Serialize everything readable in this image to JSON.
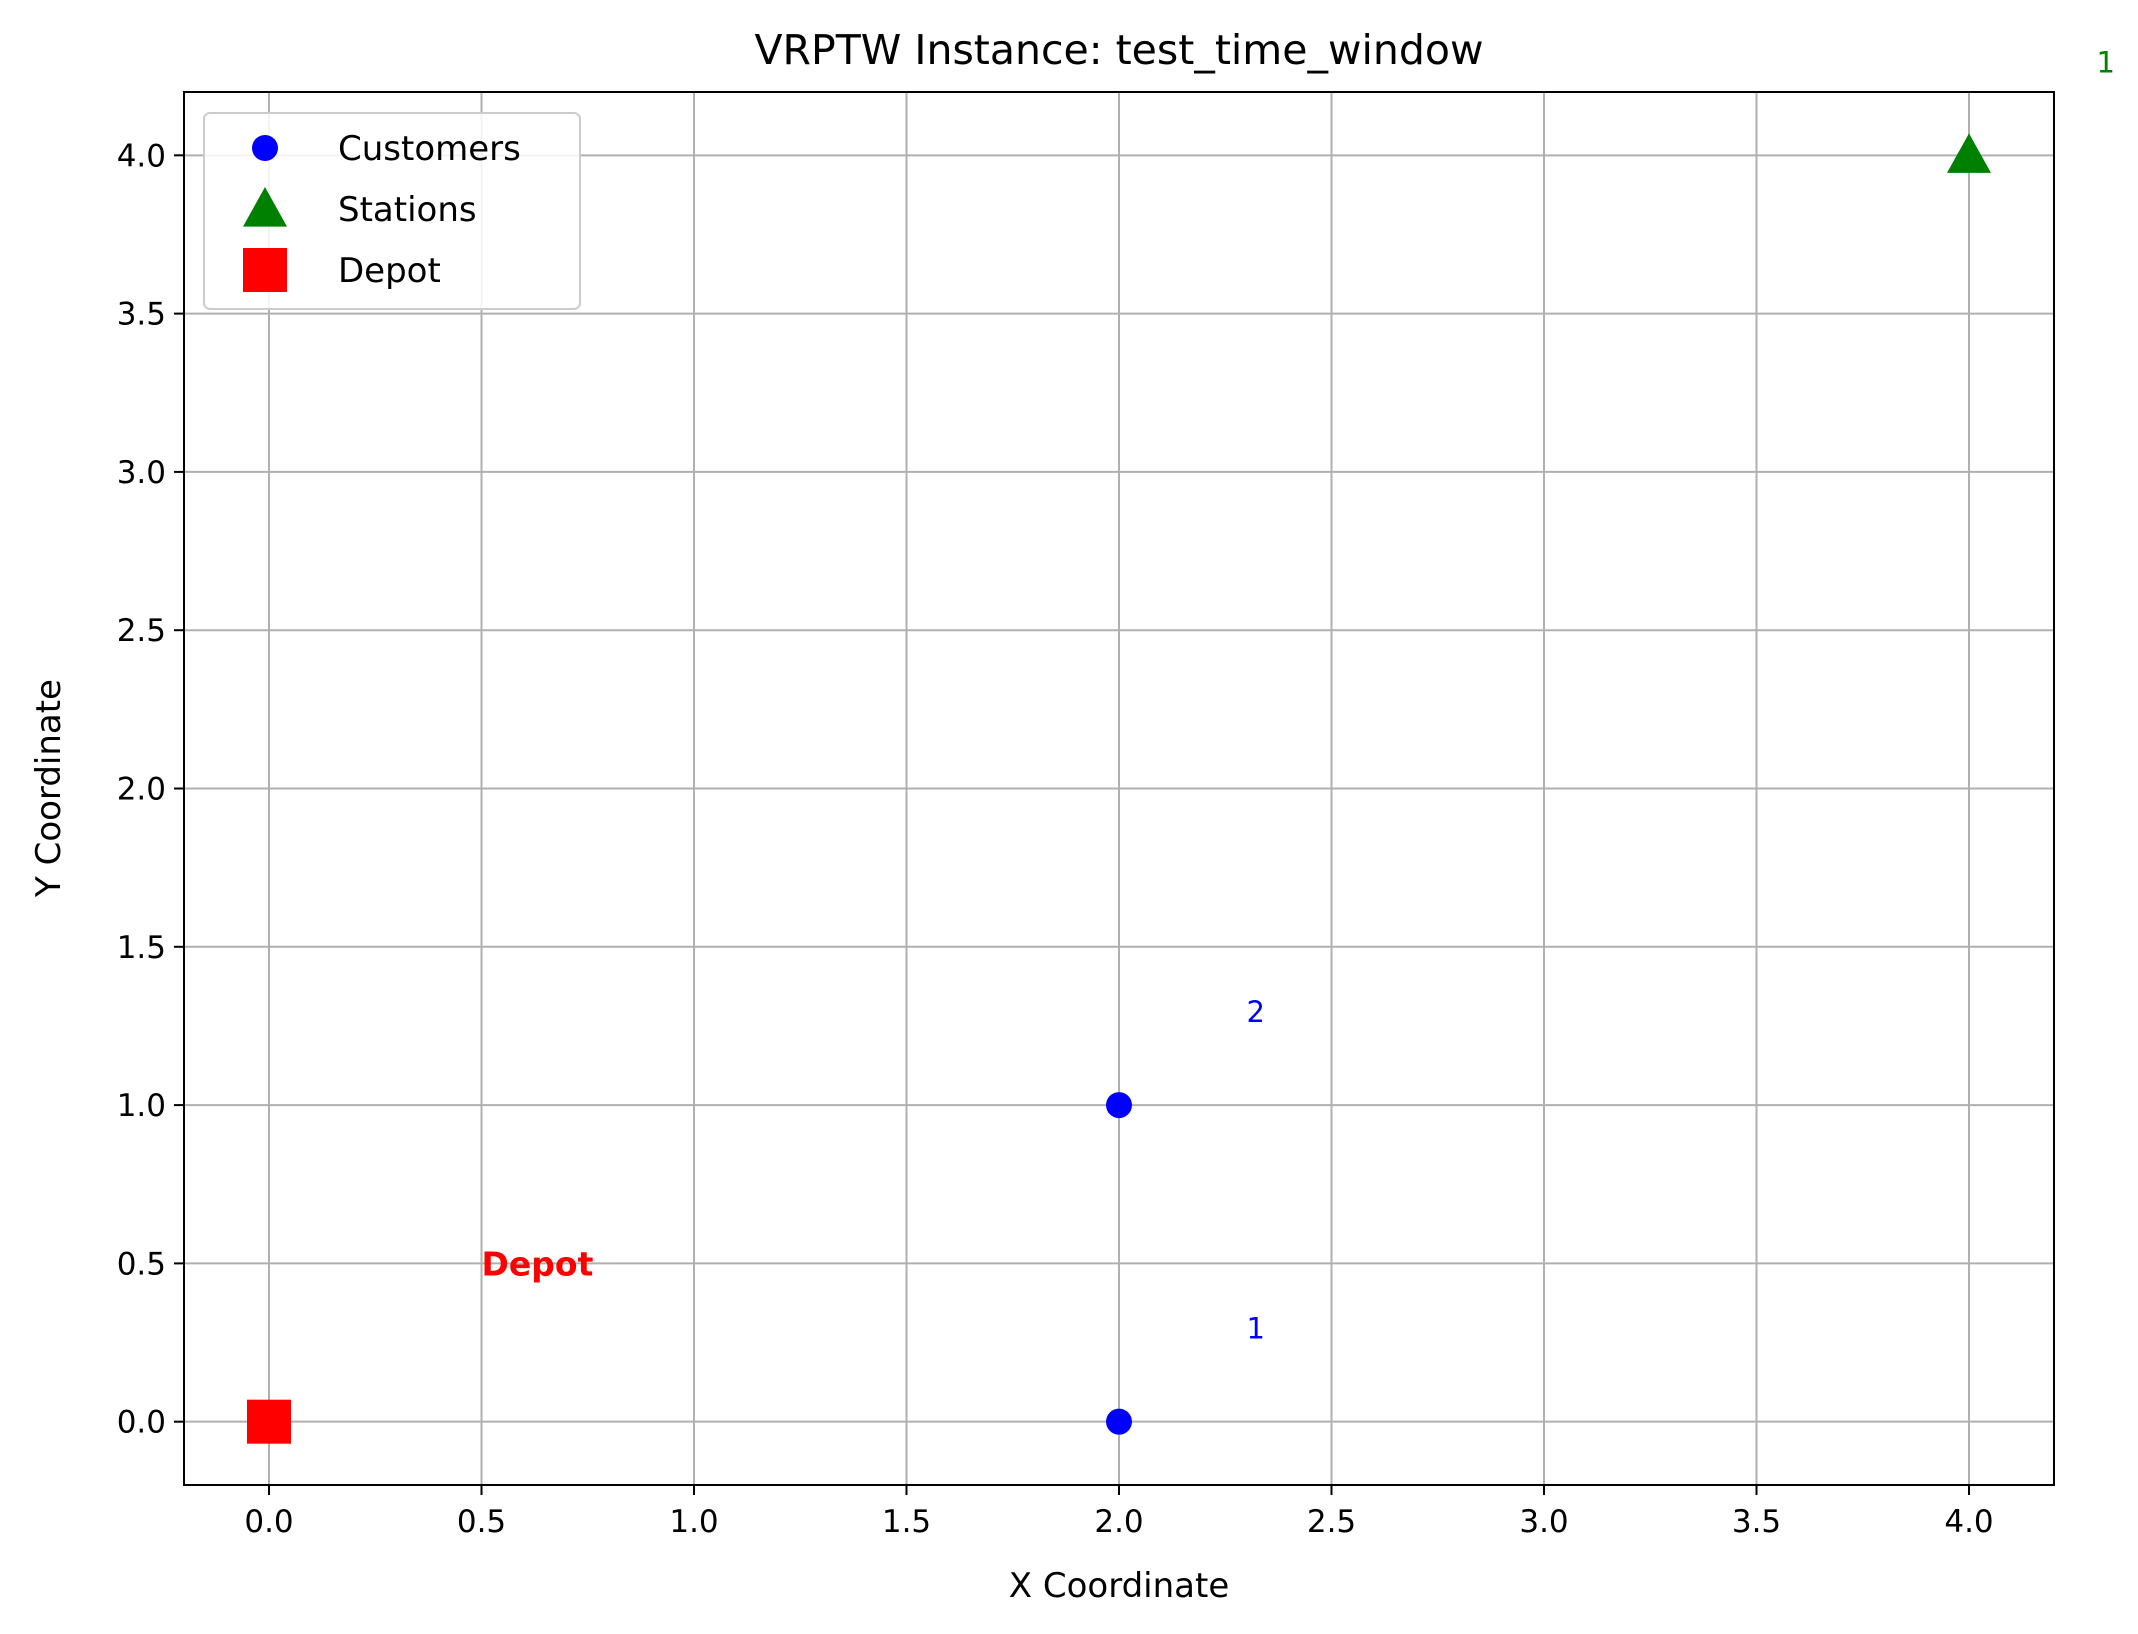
{
  "chart_data": {
    "type": "scatter",
    "title": "VRPTW Instance: test_time_window",
    "xlabel": "X Coordinate",
    "ylabel": "Y Coordinate",
    "xlim": [
      -0.2,
      4.2
    ],
    "ylim": [
      -0.2,
      4.2
    ],
    "x_ticks": [
      "0.0",
      "0.5",
      "1.0",
      "1.5",
      "2.0",
      "2.5",
      "3.0",
      "3.5",
      "4.0"
    ],
    "y_ticks": [
      "0.0",
      "0.5",
      "1.0",
      "1.5",
      "2.0",
      "2.5",
      "3.0",
      "3.5",
      "4.0"
    ],
    "grid": true,
    "legend_position": "top-left",
    "series": [
      {
        "name": "Customers",
        "marker": "circle",
        "color": "#0000ff",
        "points": [
          {
            "x": 2.0,
            "y": 0.0
          },
          {
            "x": 2.0,
            "y": 1.0
          }
        ]
      },
      {
        "name": "Stations",
        "marker": "triangle",
        "color": "#008000",
        "points": [
          {
            "x": 4.0,
            "y": 4.0
          }
        ]
      },
      {
        "name": "Depot",
        "marker": "square",
        "color": "#ff0000",
        "points": [
          {
            "x": 0.0,
            "y": 0.0
          }
        ]
      }
    ],
    "annotations": [
      {
        "text": "1",
        "x": 2.3,
        "y": 0.3,
        "color": "#0000ff",
        "bold": false
      },
      {
        "text": "2",
        "x": 2.3,
        "y": 1.3,
        "color": "#0000ff",
        "bold": false
      },
      {
        "text": "Depot",
        "x": 0.5,
        "y": 0.5,
        "color": "#ff0000",
        "bold": true
      },
      {
        "text": "1",
        "x": 4.3,
        "y": 4.3,
        "color": "#008000",
        "bold": false
      }
    ]
  }
}
